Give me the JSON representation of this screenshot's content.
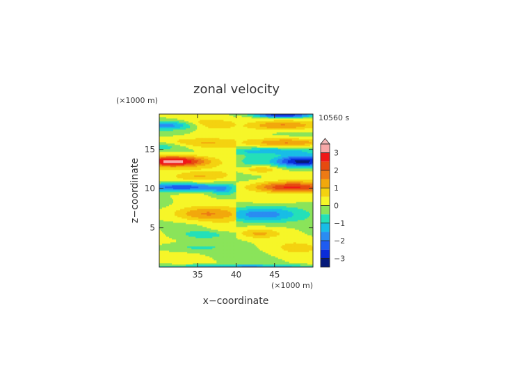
{
  "chart_data": {
    "type": "heatmap",
    "title": "zonal velocity",
    "xlabel": "x−coordinate",
    "ylabel": "z−coordinate",
    "x_unit": "(×1000 m)",
    "y_unit": "(×1000 m)",
    "time_label": "10560 s",
    "xlim": [
      30,
      50
    ],
    "ylim": [
      0,
      19.5
    ],
    "x_ticks": [
      35,
      40,
      45
    ],
    "x_tick_labels": [
      "35",
      "40",
      "45"
    ],
    "y_ticks": [
      5,
      10,
      15
    ],
    "y_tick_labels": [
      "5",
      "10",
      "15"
    ],
    "colorbar": {
      "ticks": [
        -3,
        -2,
        -1,
        0,
        1,
        2,
        3
      ],
      "tick_labels": [
        "−3",
        "−2",
        "−1",
        "0",
        "1",
        "2",
        "3"
      ],
      "range": [
        -3.5,
        3.5
      ],
      "levels": [
        -3.5,
        -3,
        -2.5,
        -2,
        -1.5,
        -1,
        -0.5,
        0,
        0.5,
        1,
        1.5,
        2,
        2.5,
        3,
        3.5
      ],
      "colors": [
        "#061a7a",
        "#0a2cd8",
        "#1e5cf0",
        "#2a8cf2",
        "#18bde6",
        "#24e0b8",
        "#8ae45a",
        "#f6f628",
        "#f4d210",
        "#f2a80c",
        "#ec7a14",
        "#e64a10",
        "#f01818",
        "#f8a8a8"
      ],
      "extend_top_color": "#f4b8b8"
    }
  }
}
